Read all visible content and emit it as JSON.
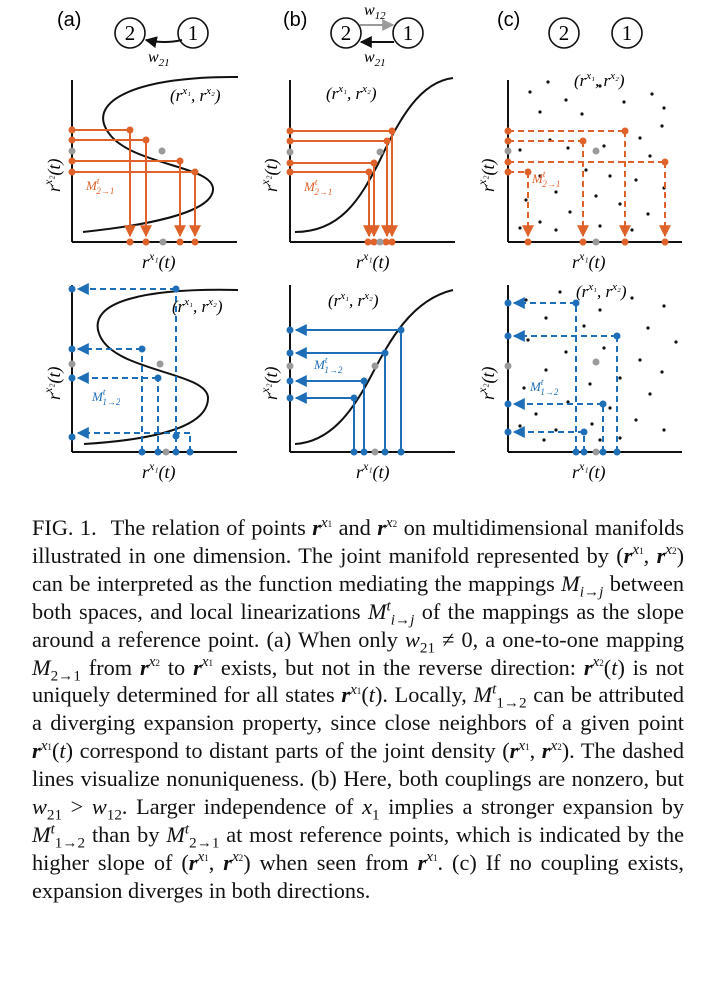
{
  "figure": {
    "panel_labels": [
      "(a)",
      "(b)",
      "(c)"
    ],
    "node_labels": [
      "2",
      "1"
    ],
    "coupling_w21": "w21",
    "coupling_w12": "w12",
    "curve_label": "(r^x1, r^x2)",
    "x_axis_label": "r^x1(t)",
    "y_axis_label": "r^x2(t)",
    "map_2to1": "M^t_2→1",
    "map_1to2": "M^t_1→2",
    "colors": {
      "orange": "#e0622b",
      "blue": "#1f6fb8",
      "gray": "#9a9a9a",
      "black": "#111111"
    }
  },
  "caption": {
    "label": "FIG. 1.",
    "text": "The relation of points r^x1 and r^x2 on multidimensional manifolds illustrated in one dimension. The joint manifold represented by (r^x1, r^x2) can be interpreted as the function mediating the mappings M_i→j between both spaces, and local linearizations M^t_i→j of the mappings as the slope around a reference point. (a) When only w21 ≠ 0, a one-to-one mapping M_2→1 from r^x2 to r^x1 exists, but not in the reverse direction: r^x2(t) is not uniquely determined for all states r^x1(t). Locally, M^t_1→2 can be attributed a diverging expansion property, since close neighbors of a given point r^x1(t) correspond to distant parts of the joint density (r^x1, r^x2). The dashed lines visualize nonuniqueness. (b) Here, both couplings are nonzero, but w21 > w12. Larger independence of x1 implies a stronger expansion by M^t_1→2 than by M^t_2→1 at most reference points, which is indicated by the higher slope of (r^x1, r^x2) when seen from r^x1. (c) If no coupling exists, expansion diverges in both directions.",
    "t1": "The relation of points ",
    "t2": " and ",
    "t3": " on multidimensional manifolds illustrated in one dimension. The joint manifold represented by (",
    "t4": ", ",
    "t5": ") can be interpreted as the function mediating the mappings ",
    "t6": " between both spaces, and local linearizations ",
    "t7": " of the mappings as the slope around a reference point. (a) When only ",
    "t8": ", a one-to-one mapping ",
    "t9": " from ",
    "t10": " to ",
    "t11": " exists, but not in the reverse direction: ",
    "t12": " is not uniquely determined for all states ",
    "t13": ". Locally, ",
    "t14": " can be attributed a diverging expansion property, since close neighbors of a given point ",
    "t15": " correspond to distant parts of the joint density (",
    "t16": ", ",
    "t17": "). The dashed lines visualize nonuniqueness. (b) Here, both couplings are nonzero, but ",
    "t18": ". Larger independence of ",
    "t19": " implies a stronger expansion by ",
    "t20": " than by ",
    "t21": " at most reference points, which is indicated by the higher slope of (",
    "t22": ", ",
    "t23": ") when seen from ",
    "t24": ". (c) If no coupling exists, expansion diverges in both directions."
  }
}
